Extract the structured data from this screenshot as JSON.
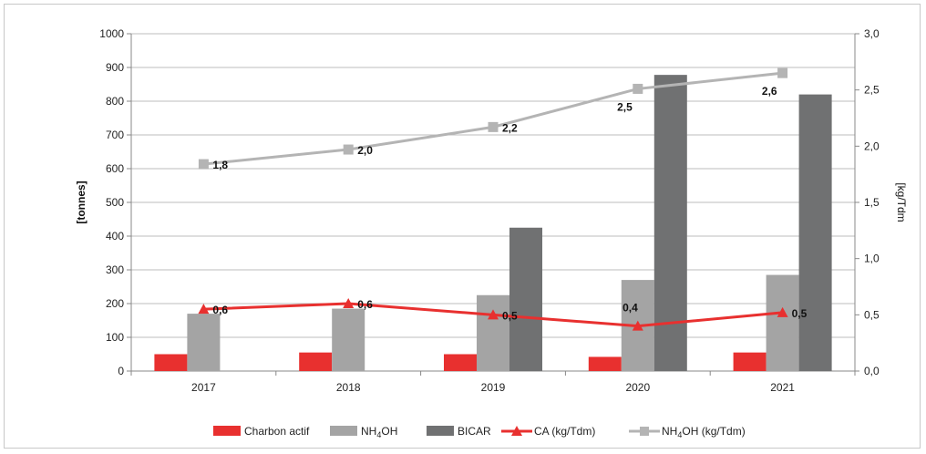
{
  "chart_data": {
    "type": "bar",
    "categories": [
      "2017",
      "2018",
      "2019",
      "2020",
      "2021"
    ],
    "series": [
      {
        "name": "Charbon actif",
        "kind": "bar",
        "axis": "left",
        "color": "#e8302f",
        "values": [
          50,
          55,
          50,
          42,
          55
        ]
      },
      {
        "name": "NH4OH",
        "name_main": "NH",
        "name_sub": "4",
        "name_tail": "OH",
        "kind": "bar",
        "axis": "left",
        "color": "#a4a4a4",
        "values": [
          170,
          185,
          225,
          270,
          285
        ]
      },
      {
        "name": "BICAR",
        "kind": "bar",
        "axis": "left",
        "color": "#707172",
        "values": [
          0,
          0,
          425,
          878,
          820
        ]
      },
      {
        "name": "CA (kg/Tdm)",
        "kind": "line",
        "axis": "right",
        "color": "#e8302f",
        "marker": "triangle",
        "values": [
          0.55,
          0.6,
          0.5,
          0.4,
          0.52
        ],
        "labels": [
          "0,6",
          "0,6",
          "0,5",
          "0,4",
          "0,5"
        ]
      },
      {
        "name": "NH4OH  (kg/Tdm)",
        "name_main": "NH",
        "name_sub": "4",
        "name_tail": "OH  (kg/Tdm)",
        "kind": "line",
        "axis": "right",
        "color": "#b4b4b4",
        "marker": "square",
        "values": [
          1.84,
          1.97,
          2.17,
          2.51,
          2.65
        ],
        "labels": [
          "1,8",
          "2,0",
          "2,2",
          "2,5",
          "2,6"
        ]
      }
    ],
    "ylabel": "[tonnes]",
    "y2label": "[kg/Tdm",
    "ylim": [
      0,
      1000
    ],
    "y2lim": [
      0,
      3
    ],
    "yticks": [
      "0",
      "100",
      "200",
      "300",
      "400",
      "500",
      "600",
      "700",
      "800",
      "900",
      "1000"
    ],
    "y2ticks": [
      "0,0",
      "0,5",
      "1,0",
      "1,5",
      "2,0",
      "2,5",
      "3,0"
    ],
    "grid": true,
    "legend_position": "bottom"
  }
}
